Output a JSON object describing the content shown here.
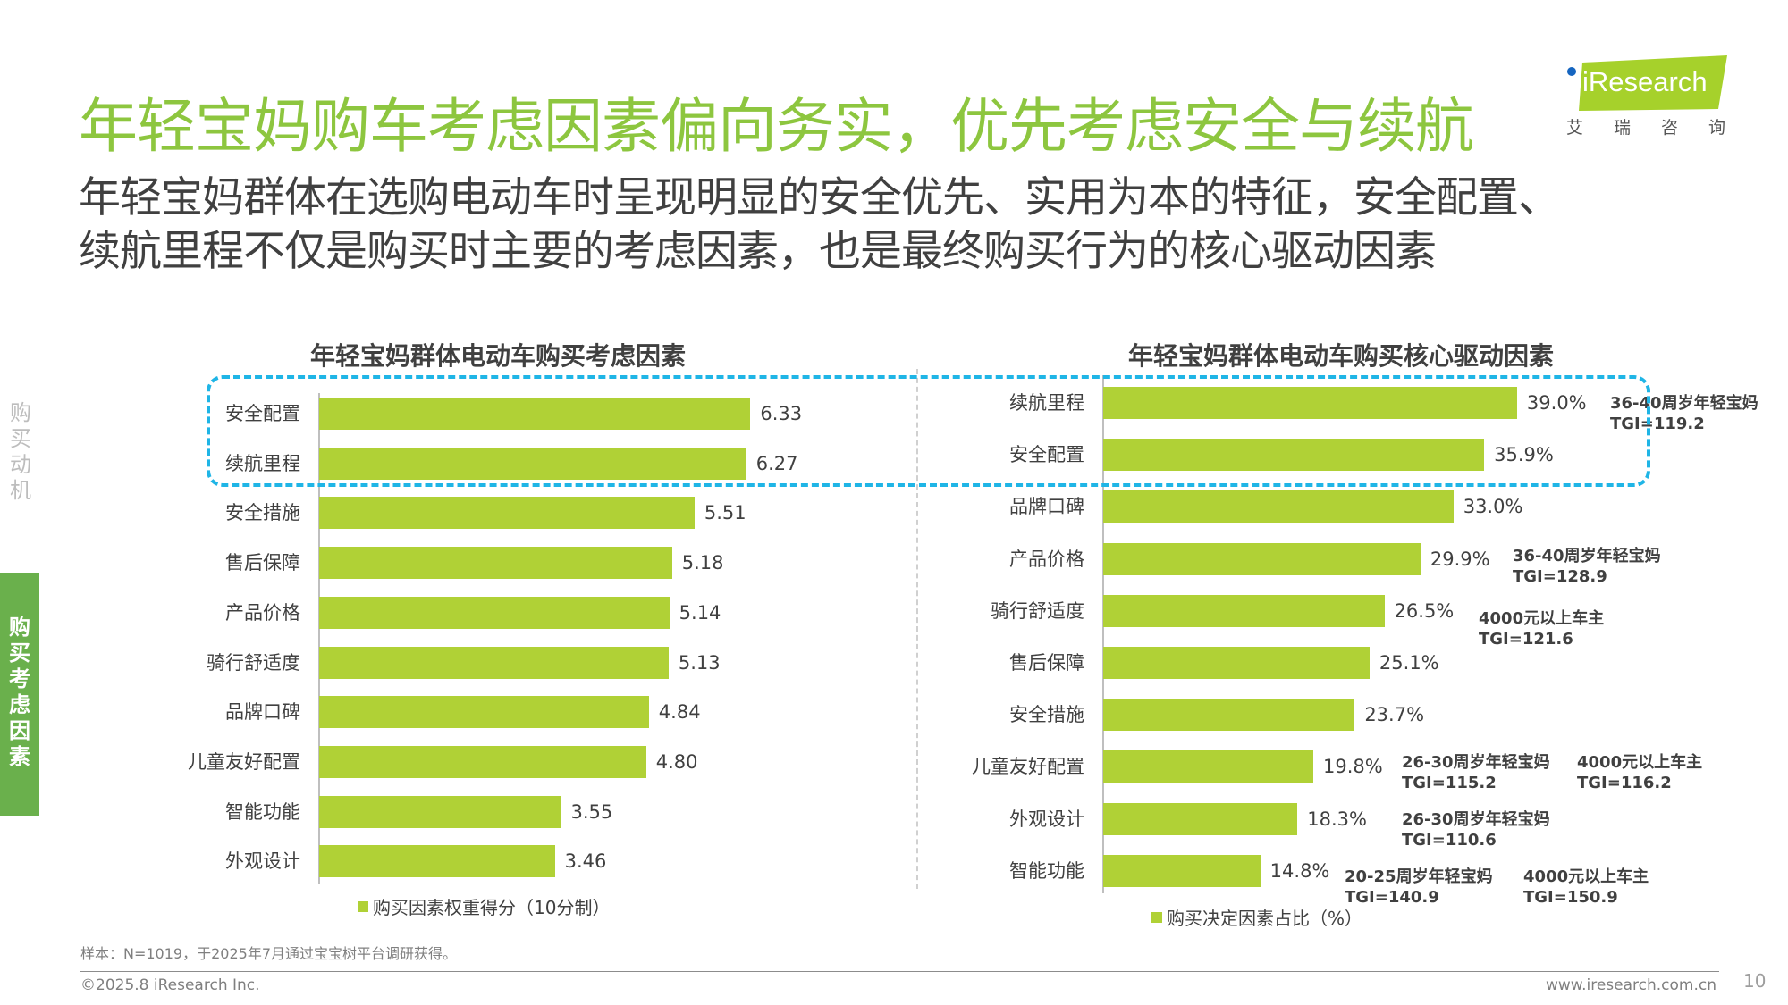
{
  "header": {
    "title": "年轻宝妈购车考虑因素偏向务实，优先考虑安全与续航",
    "subtitle_lines": [
      "年轻宝妈群体在选购电动车时呈现明显的安全优先、实用为本的特征，安全配置、",
      "续航里程不仅是购买时主要的考虑因素，也是最终购买行为的核心驱动因素"
    ],
    "logo_text": "iResearch",
    "logo_cn": "艾瑞咨询"
  },
  "side_nav": {
    "inactive": "购买动机",
    "active": "购买考虑因素"
  },
  "colors": {
    "bar": "#b0d136",
    "title": "#8dc63f",
    "highlight_box": "#1fb5e6",
    "side_tab": "#6ab04c"
  },
  "chart_data": [
    {
      "type": "bar",
      "orientation": "horizontal",
      "title": "年轻宝妈群体电动车购买考虑因素",
      "categories": [
        "安全配置",
        "续航里程",
        "安全措施",
        "售后保障",
        "产品价格",
        "骑行舒适度",
        "品牌口碑",
        "儿童友好配置",
        "智能功能",
        "外观设计"
      ],
      "series": [
        {
          "name": "购买因素权重得分（10分制）",
          "values": [
            6.33,
            6.27,
            5.51,
            5.18,
            5.14,
            5.13,
            4.84,
            4.8,
            3.55,
            3.46
          ]
        }
      ],
      "value_labels": [
        "6.33",
        "6.27",
        "5.51",
        "5.18",
        "5.14",
        "5.13",
        "4.84",
        "4.80",
        "3.55",
        "3.46"
      ],
      "legend": "bottom",
      "grid": false
    },
    {
      "type": "bar",
      "orientation": "horizontal",
      "title": "年轻宝妈群体电动车购买核心驱动因素",
      "categories": [
        "续航里程",
        "安全配置",
        "品牌口碑",
        "产品价格",
        "骑行舒适度",
        "售后保障",
        "安全措施",
        "儿童友好配置",
        "外观设计",
        "智能功能"
      ],
      "series": [
        {
          "name": "购买决定因素占比（%）",
          "values": [
            39.0,
            35.9,
            33.0,
            29.9,
            26.5,
            25.1,
            23.7,
            19.8,
            18.3,
            14.8
          ]
        }
      ],
      "value_labels": [
        "39.0%",
        "35.9%",
        "33.0%",
        "29.9%",
        "26.5%",
        "25.1%",
        "23.7%",
        "19.8%",
        "18.3%",
        "14.8%"
      ],
      "legend": "bottom",
      "grid": false,
      "annotations": [
        {
          "category": "续航里程",
          "lines": [
            "36-40周岁年轻宝妈",
            "TGI=119.2"
          ]
        },
        {
          "category": "产品价格",
          "lines": [
            "36-40周岁年轻宝妈",
            "TGI=128.9"
          ]
        },
        {
          "category": "骑行舒适度",
          "lines": [
            "4000元以上车主",
            "TGI=121.6"
          ]
        },
        {
          "category": "儿童友好配置",
          "lines": [
            "26-30周岁年轻宝妈",
            "TGI=115.2"
          ]
        },
        {
          "category": "儿童友好配置",
          "lines": [
            "4000元以上车主",
            "TGI=116.2"
          ]
        },
        {
          "category": "外观设计",
          "lines": [
            "26-30周岁年轻宝妈",
            "TGI=110.6"
          ]
        },
        {
          "category": "智能功能",
          "lines": [
            "20-25周岁年轻宝妈",
            "TGI=140.9"
          ]
        },
        {
          "category": "智能功能",
          "lines": [
            "4000元以上车主",
            "TGI=150.9"
          ]
        }
      ],
      "highlight": [
        "续航里程",
        "安全配置"
      ]
    }
  ],
  "footer": {
    "note": "样本：N=1019，于2025年7月通过宝宝树平台调研获得。",
    "copyright": "©2025.8 iResearch Inc.",
    "url": "www.iresearch.com.cn",
    "page": "10"
  }
}
